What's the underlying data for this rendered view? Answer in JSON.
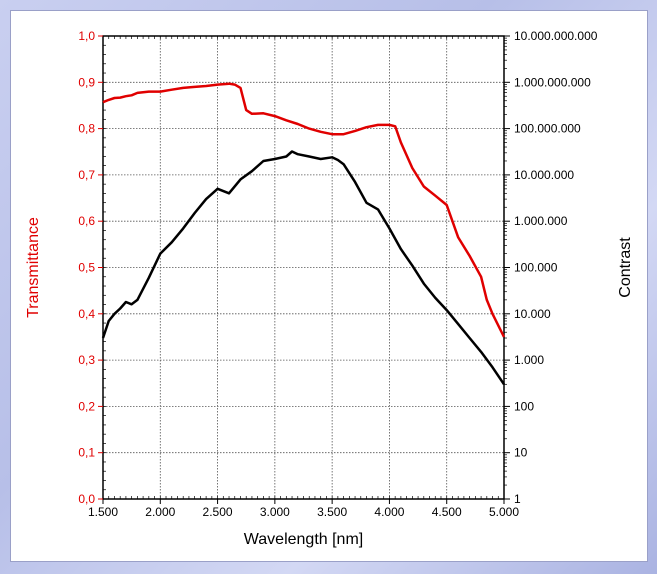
{
  "chart_data": {
    "type": "line",
    "xlabel": "Wavelength [nm]",
    "ylabel_left": "Transmittance",
    "ylabel_right": "Contrast",
    "xlim": [
      1500,
      5000
    ],
    "ylim_left": [
      0.0,
      1.0
    ],
    "ylim_right": [
      1,
      10000000000
    ],
    "right_axis_scale": "log",
    "grid": true,
    "x_ticks": [
      "1.500",
      "2.000",
      "2.500",
      "3.000",
      "3.500",
      "4.000",
      "4.500",
      "5.000"
    ],
    "x_tick_values": [
      1500,
      2000,
      2500,
      3000,
      3500,
      4000,
      4500,
      5000
    ],
    "y_left_ticks": [
      "0,0",
      "0,1",
      "0,2",
      "0,3",
      "0,4",
      "0,5",
      "0,6",
      "0,7",
      "0,8",
      "0,9",
      "1,0"
    ],
    "y_right_ticks": [
      "1",
      "10",
      "100",
      "1.000",
      "10.000",
      "100.000",
      "1.000.000",
      "10.000.000",
      "100.000.000",
      "1.000.000.000",
      "10.000.000.000"
    ],
    "colors": {
      "transmittance": "#e00000",
      "contrast": "#000000",
      "left_axis_title": "#e00000"
    },
    "series": [
      {
        "axis": "left",
        "x": [
          1500,
          1550,
          1600,
          1650,
          1700,
          1750,
          1800,
          1900,
          2000,
          2100,
          2200,
          2300,
          2400,
          2500,
          2600,
          2650,
          2700,
          2750,
          2800,
          2900,
          3000,
          3100,
          3200,
          3300,
          3400,
          3500,
          3600,
          3700,
          3800,
          3900,
          4000,
          4050,
          4100,
          4200,
          4300,
          4400,
          4500,
          4600,
          4700,
          4800,
          4850,
          4900,
          5000
        ],
        "values": [
          0.857,
          0.862,
          0.866,
          0.867,
          0.87,
          0.872,
          0.877,
          0.88,
          0.88,
          0.884,
          0.888,
          0.89,
          0.892,
          0.895,
          0.897,
          0.895,
          0.888,
          0.84,
          0.832,
          0.833,
          0.827,
          0.818,
          0.81,
          0.8,
          0.793,
          0.788,
          0.788,
          0.795,
          0.803,
          0.808,
          0.808,
          0.805,
          0.77,
          0.715,
          0.675,
          0.655,
          0.635,
          0.565,
          0.525,
          0.48,
          0.43,
          0.4,
          0.35
        ]
      },
      {
        "axis": "right",
        "x": [
          1500,
          1550,
          1600,
          1650,
          1700,
          1750,
          1800,
          1900,
          2000,
          2100,
          2200,
          2300,
          2400,
          2500,
          2600,
          2700,
          2800,
          2900,
          3000,
          3100,
          3150,
          3200,
          3300,
          3400,
          3500,
          3550,
          3600,
          3700,
          3800,
          3900,
          4000,
          4100,
          4200,
          4300,
          4400,
          4500,
          4600,
          4700,
          4800,
          4900,
          5000
        ],
        "values": [
          3000,
          7000,
          10000,
          13000,
          18000,
          16000,
          20000,
          60000,
          200000,
          350000,
          700000,
          1500000,
          3000000,
          5000000,
          4000000,
          8000000,
          12000000,
          20000000,
          22000000,
          25000000,
          32000000,
          28000000,
          25000000,
          22000000,
          24000000,
          21000000,
          17000000,
          7000000,
          2500000,
          1800000,
          700000,
          250000,
          110000,
          45000,
          22000,
          12000,
          6000,
          3000,
          1500,
          700,
          300
        ]
      }
    ]
  }
}
